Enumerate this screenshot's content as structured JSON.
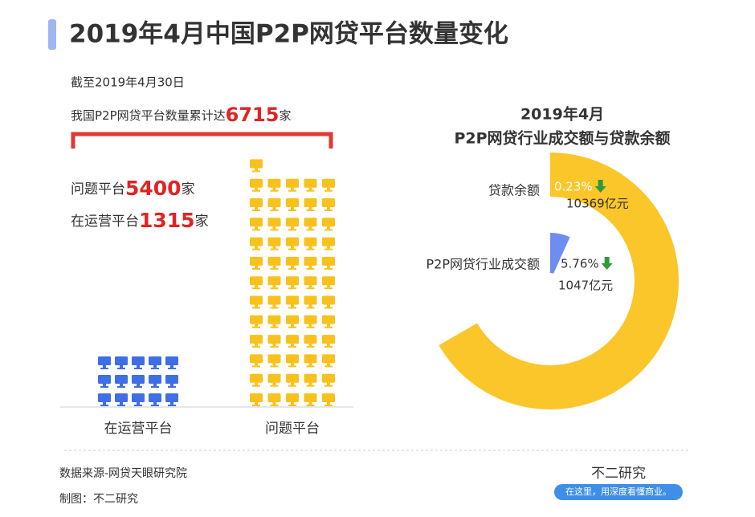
{
  "header": {
    "title": "2019年4月中国P2P网贷平台数量变化",
    "date_note": "截至2019年4月30日",
    "total_prefix": "我国P2P网贷平台数量累计达",
    "total": 6715
  },
  "chart_data": [
    {
      "type": "pictogram",
      "categories": [
        "在运营平台",
        "问题平台"
      ],
      "values": [
        1315,
        5400
      ],
      "colors": [
        "#3f6ee6",
        "#f9c11c"
      ],
      "unit": "家"
    },
    {
      "type": "radial-bar",
      "title": "2019年4月",
      "subtitle": "P2P网贷行业成交额与贷款余额",
      "categories": [
        "贷款余额",
        "P2P网贷行业成交额"
      ],
      "values": [
        10369,
        1047
      ],
      "value_labels": [
        "10369亿元",
        "1047亿元"
      ],
      "change_labels": [
        "0.23%",
        "5.76%"
      ],
      "colors": [
        "#fac62a",
        "#6f8cf0"
      ]
    }
  ],
  "footer": {
    "source": "数据来源-网贷天眼研究院",
    "maker": "制图：不二研究",
    "brand": "不二研究",
    "slogan": "在这里，用深度看懂商业。"
  }
}
